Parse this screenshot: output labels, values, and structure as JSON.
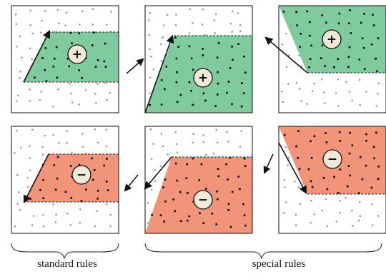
{
  "labels": {
    "standard": "standard rules",
    "special": "special rules"
  },
  "colors": {
    "green": "#7fcb9d",
    "red": "#f2947a",
    "dot_gray": "#9a9a9a",
    "dot_black": "#141414",
    "frame": "#222222",
    "badge_fill": "#efe9da"
  },
  "panels": [
    {
      "id": "top-left",
      "fill": "green",
      "sign": "+"
    },
    {
      "id": "top-middle",
      "fill": "green",
      "sign": "+"
    },
    {
      "id": "top-right",
      "fill": "green",
      "sign": "+"
    },
    {
      "id": "bottom-left",
      "fill": "red",
      "sign": "−"
    },
    {
      "id": "bottom-middle",
      "fill": "red",
      "sign": "−"
    },
    {
      "id": "bottom-right",
      "fill": "red",
      "sign": "−"
    }
  ]
}
